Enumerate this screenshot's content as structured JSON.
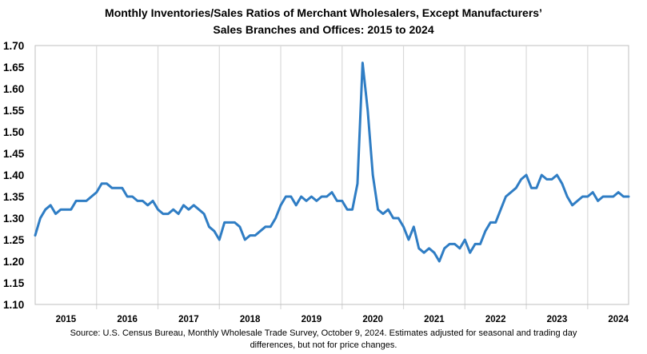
{
  "chart_data": {
    "type": "line",
    "title_lines": [
      "Monthly Inventories/Sales Ratios of Merchant Wholesalers, Except Manufacturers’",
      "Sales Branches and Offices: 2015 to 2024"
    ],
    "ylim": [
      1.1,
      1.7
    ],
    "yticks": [
      "1.70",
      "1.65",
      "1.60",
      "1.55",
      "1.50",
      "1.45",
      "1.40",
      "1.35",
      "1.30",
      "1.25",
      "1.20",
      "1.15",
      "1.10"
    ],
    "ytick_values": [
      1.7,
      1.65,
      1.6,
      1.55,
      1.5,
      1.45,
      1.4,
      1.35,
      1.3,
      1.25,
      1.2,
      1.15,
      1.1
    ],
    "x_start": 2015.0,
    "x_end": 2024.6667,
    "xticks": [
      "2015",
      "2016",
      "2017",
      "2018",
      "2019",
      "2020",
      "2021",
      "2022",
      "2023",
      "2024"
    ],
    "xtick_positions": [
      2015.5,
      2016.5,
      2017.5,
      2018.5,
      2019.5,
      2020.5,
      2021.5,
      2022.5,
      2023.5,
      2024.5
    ],
    "year_separators": [
      2016,
      2017,
      2018,
      2019,
      2020,
      2021,
      2022,
      2023,
      2024
    ],
    "grid": "vertical year separators",
    "line_color": "#2f7dc4",
    "grid_color": "#d9d9d9",
    "series": [
      {
        "name": "Inventories/Sales Ratio",
        "start": "2015-01",
        "values": [
          1.26,
          1.3,
          1.32,
          1.33,
          1.31,
          1.32,
          1.32,
          1.32,
          1.34,
          1.34,
          1.34,
          1.35,
          1.36,
          1.38,
          1.38,
          1.37,
          1.37,
          1.37,
          1.35,
          1.35,
          1.34,
          1.34,
          1.33,
          1.34,
          1.32,
          1.31,
          1.31,
          1.32,
          1.31,
          1.33,
          1.32,
          1.33,
          1.32,
          1.31,
          1.28,
          1.27,
          1.25,
          1.29,
          1.29,
          1.29,
          1.28,
          1.25,
          1.26,
          1.26,
          1.27,
          1.28,
          1.28,
          1.3,
          1.33,
          1.35,
          1.35,
          1.33,
          1.35,
          1.34,
          1.35,
          1.34,
          1.35,
          1.35,
          1.36,
          1.34,
          1.34,
          1.32,
          1.32,
          1.38,
          1.66,
          1.55,
          1.4,
          1.32,
          1.31,
          1.32,
          1.3,
          1.3,
          1.28,
          1.25,
          1.28,
          1.23,
          1.22,
          1.23,
          1.22,
          1.2,
          1.23,
          1.24,
          1.24,
          1.23,
          1.25,
          1.22,
          1.24,
          1.24,
          1.27,
          1.29,
          1.29,
          1.32,
          1.35,
          1.36,
          1.37,
          1.39,
          1.4,
          1.37,
          1.37,
          1.4,
          1.39,
          1.39,
          1.4,
          1.38,
          1.35,
          1.33,
          1.34,
          1.35,
          1.35,
          1.36,
          1.34,
          1.35,
          1.35,
          1.35,
          1.36,
          1.35,
          1.35
        ]
      }
    ],
    "source_lines": [
      "Source: U.S. Census Bureau, Monthly Wholesale Trade Survey, October 9, 2024. Estimates adjusted for seasonal and trading day",
      "differences, but not for price changes."
    ]
  }
}
